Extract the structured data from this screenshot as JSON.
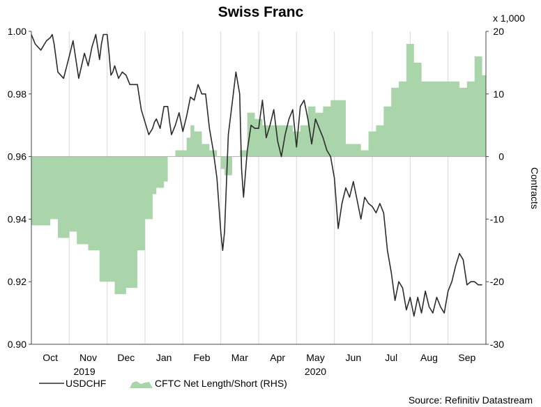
{
  "chart_data": {
    "type": "line",
    "title": "Swiss Franc",
    "y_multiplier_label": "x 1,000",
    "y2_label": "Contracts",
    "source": "Source: Refinitiv Datastream",
    "ylim": [
      0.9,
      1.0
    ],
    "y2lim": [
      -30,
      20
    ],
    "yticks": [
      "1.00",
      "0.98",
      "0.96",
      "0.94",
      "0.92",
      "0.90"
    ],
    "y2ticks": [
      "20",
      "10",
      "0",
      "-10",
      "-20",
      "-30"
    ],
    "xlim": [
      0,
      12
    ],
    "month_labels": [
      "Oct",
      "Nov",
      "Dec",
      "Jan",
      "Feb",
      "Mar",
      "Apr",
      "May",
      "Jun",
      "Jul",
      "Aug",
      "Sep"
    ],
    "year_labels": [
      {
        "label": "2019",
        "x": 1.4
      },
      {
        "label": "2020",
        "x": 7.5
      }
    ],
    "series": [
      {
        "name": "USDCHF",
        "type": "line",
        "color": "#2b2b2b",
        "axis": "left",
        "x": [
          0.0,
          0.1,
          0.25,
          0.4,
          0.5,
          0.55,
          0.6,
          0.7,
          0.85,
          1.0,
          1.1,
          1.25,
          1.4,
          1.5,
          1.6,
          1.7,
          1.8,
          1.85,
          1.9,
          2.0,
          2.05,
          2.1,
          2.15,
          2.2,
          2.3,
          2.4,
          2.5,
          2.6,
          2.7,
          2.8,
          2.9,
          3.0,
          3.1,
          3.2,
          3.25,
          3.3,
          3.4,
          3.5,
          3.6,
          3.65,
          3.7,
          3.8,
          3.9,
          4.0,
          4.1,
          4.2,
          4.3,
          4.4,
          4.5,
          4.6,
          4.7,
          4.8,
          4.9,
          5.0,
          5.05,
          5.1,
          5.2,
          5.3,
          5.4,
          5.5,
          5.55,
          5.6,
          5.7,
          5.8,
          5.9,
          6.0,
          6.1,
          6.2,
          6.3,
          6.4,
          6.5,
          6.6,
          6.7,
          6.8,
          6.9,
          7.0,
          7.1,
          7.2,
          7.3,
          7.4,
          7.5,
          7.6,
          7.7,
          7.8,
          7.9,
          8.0,
          8.1,
          8.2,
          8.3,
          8.4,
          8.5,
          8.6,
          8.7,
          8.8,
          8.9,
          9.0,
          9.1,
          9.2,
          9.3,
          9.4,
          9.5,
          9.6,
          9.7,
          9.8,
          9.9,
          10.0,
          10.1,
          10.2,
          10.3,
          10.4,
          10.5,
          10.6,
          10.7,
          10.8,
          10.9,
          11.0,
          11.1,
          11.2,
          11.3,
          11.4,
          11.5,
          11.6,
          11.7,
          11.8,
          11.9
        ],
        "values": [
          0.999,
          0.996,
          0.994,
          0.997,
          0.998,
          0.999,
          0.996,
          0.987,
          0.985,
          0.992,
          0.997,
          0.985,
          0.993,
          0.989,
          0.995,
          0.999,
          0.991,
          0.996,
          0.999,
          0.999,
          0.993,
          0.986,
          0.987,
          0.989,
          0.985,
          0.987,
          0.986,
          0.983,
          0.983,
          0.983,
          0.975,
          0.971,
          0.967,
          0.969,
          0.971,
          0.972,
          0.969,
          0.976,
          0.976,
          0.971,
          0.967,
          0.97,
          0.974,
          0.968,
          0.973,
          0.979,
          0.978,
          0.983,
          0.98,
          0.98,
          0.969,
          0.962,
          0.953,
          0.936,
          0.93,
          0.936,
          0.967,
          0.977,
          0.987,
          0.98,
          0.956,
          0.947,
          0.962,
          0.97,
          0.969,
          0.969,
          0.978,
          0.966,
          0.97,
          0.975,
          0.965,
          0.96,
          0.967,
          0.972,
          0.975,
          0.963,
          0.976,
          0.978,
          0.972,
          0.964,
          0.972,
          0.969,
          0.966,
          0.962,
          0.96,
          0.953,
          0.937,
          0.945,
          0.95,
          0.947,
          0.952,
          0.946,
          0.94,
          0.947,
          0.945,
          0.944,
          0.942,
          0.945,
          0.942,
          0.93,
          0.923,
          0.914,
          0.92,
          0.918,
          0.911,
          0.915,
          0.909,
          0.915,
          0.91,
          0.917,
          0.912,
          0.91,
          0.915,
          0.912,
          0.91,
          0.917,
          0.92,
          0.925,
          0.929,
          0.927,
          0.919,
          0.92,
          0.92,
          0.919,
          0.919
        ]
      },
      {
        "name": "CFTC Net Length/Short (RHS)",
        "type": "area",
        "color": "#aad5aa",
        "axis": "right",
        "x": [
          0.0,
          0.5,
          0.7,
          1.0,
          1.2,
          1.5,
          1.8,
          2.0,
          2.2,
          2.5,
          2.8,
          3.0,
          3.2,
          3.3,
          3.5,
          3.6,
          3.8,
          4.0,
          4.1,
          4.2,
          4.3,
          4.5,
          4.7,
          4.9,
          5.0,
          5.1,
          5.3,
          5.5,
          5.7,
          5.9,
          6.1,
          6.3,
          6.5,
          6.7,
          6.9,
          7.1,
          7.3,
          7.5,
          7.7,
          7.9,
          8.1,
          8.3,
          8.5,
          8.7,
          8.9,
          9.1,
          9.3,
          9.5,
          9.7,
          9.9,
          10.1,
          10.3,
          10.5,
          10.7,
          10.9,
          11.1,
          11.3,
          11.5,
          11.7,
          11.9
        ],
        "values": [
          -11,
          -10,
          -13,
          -12,
          -14,
          -15,
          -20,
          -20,
          -22,
          -21,
          -15,
          -10,
          -6,
          -5,
          -4,
          0,
          1,
          1,
          3,
          5,
          4,
          2,
          1,
          0,
          -2,
          -3,
          0,
          1,
          7,
          6,
          5,
          5,
          5,
          5,
          4,
          5,
          8,
          7,
          8,
          9,
          9,
          2,
          2,
          1,
          4,
          5,
          8,
          11,
          12,
          18,
          15,
          12,
          12,
          12,
          12,
          12,
          11,
          12,
          16,
          13
        ]
      }
    ]
  }
}
